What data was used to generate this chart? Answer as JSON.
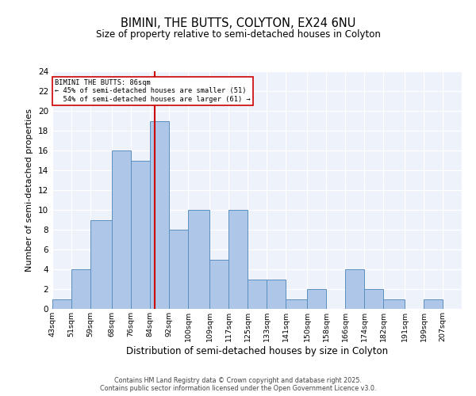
{
  "title": "BIMINI, THE BUTTS, COLYTON, EX24 6NU",
  "subtitle": "Size of property relative to semi-detached houses in Colyton",
  "xlabel": "Distribution of semi-detached houses by size in Colyton",
  "ylabel": "Number of semi-detached properties",
  "bin_labels": [
    "43sqm",
    "51sqm",
    "59sqm",
    "68sqm",
    "76sqm",
    "84sqm",
    "92sqm",
    "100sqm",
    "109sqm",
    "117sqm",
    "125sqm",
    "133sqm",
    "141sqm",
    "150sqm",
    "158sqm",
    "166sqm",
    "174sqm",
    "182sqm",
    "191sqm",
    "199sqm",
    "207sqm"
  ],
  "bin_edges": [
    43,
    51,
    59,
    68,
    76,
    84,
    92,
    100,
    109,
    117,
    125,
    133,
    141,
    150,
    158,
    166,
    174,
    182,
    191,
    199,
    207
  ],
  "counts": [
    1,
    4,
    9,
    16,
    15,
    19,
    8,
    10,
    5,
    10,
    3,
    3,
    1,
    2,
    0,
    4,
    2,
    1,
    0,
    1
  ],
  "bar_color": "#aec6e8",
  "bar_edge_color": "#5a8fc0",
  "property_size": 86,
  "property_label": "BIMINI THE BUTTS: 86sqm",
  "pct_smaller": 45,
  "n_smaller": 51,
  "pct_larger": 54,
  "n_larger": 61,
  "vline_color": "#cc0000",
  "annotation_box_edge": "#cc0000",
  "ylim": [
    0,
    24
  ],
  "yticks": [
    0,
    2,
    4,
    6,
    8,
    10,
    12,
    14,
    16,
    18,
    20,
    22,
    24
  ],
  "background_color": "#eef2fb",
  "footer_line1": "Contains HM Land Registry data © Crown copyright and database right 2025.",
  "footer_line2": "Contains public sector information licensed under the Open Government Licence v3.0."
}
